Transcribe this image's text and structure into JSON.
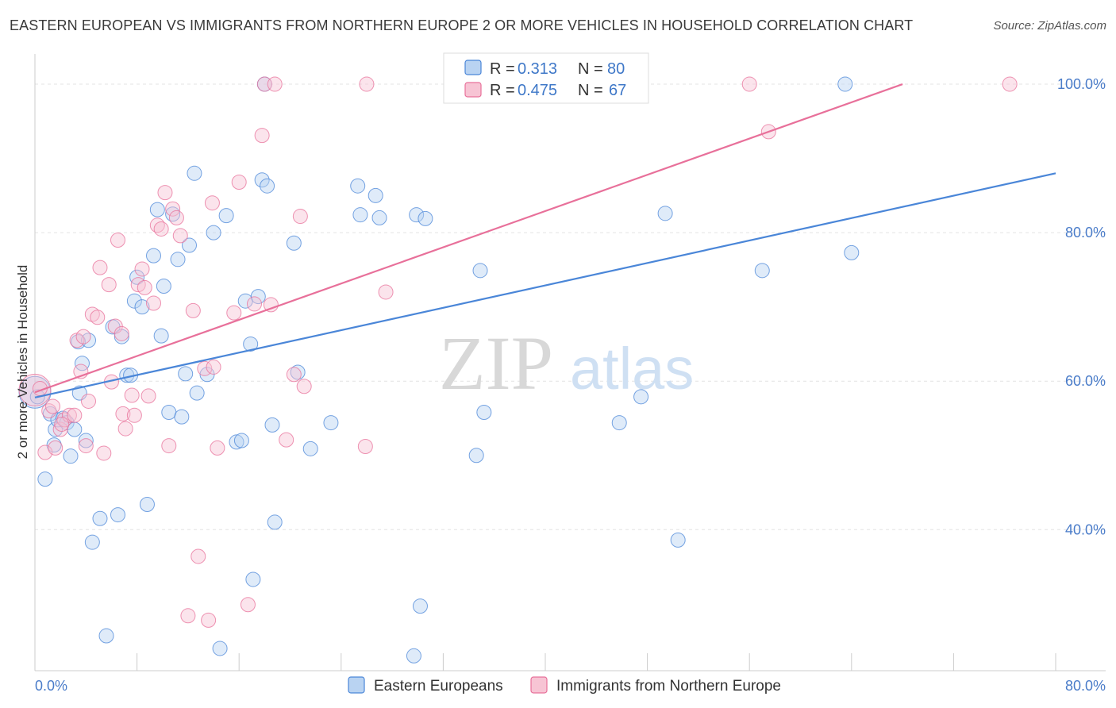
{
  "header": {
    "title": "EASTERN EUROPEAN VS IMMIGRANTS FROM NORTHERN EUROPE 2 OR MORE VEHICLES IN HOUSEHOLD CORRELATION CHART",
    "source": "Source: ZipAtlas.com"
  },
  "watermark": {
    "zip": "ZIP",
    "atlas": "atlas"
  },
  "legend": {
    "r_label": "R =",
    "n_label": "N =",
    "rows": [
      {
        "r": "0.313",
        "n": "80"
      },
      {
        "r": "0.475",
        "n": "67"
      }
    ]
  },
  "chart_data": {
    "type": "scatter",
    "title": "EASTERN EUROPEAN VS IMMIGRANTS FROM NORTHERN EUROPE 2 OR MORE VEHICLES IN HOUSEHOLD CORRELATION CHART",
    "xlabel": "",
    "ylabel": "2 or more Vehicles in Household",
    "xlim": [
      0,
      80
    ],
    "ylim": [
      21,
      103
    ],
    "x_tick_labels": [
      "0.0%",
      "80.0%"
    ],
    "y_ticks": [
      40,
      60,
      80,
      100
    ],
    "y_tick_labels": [
      "40.0%",
      "60.0%",
      "80.0%",
      "100.0%"
    ],
    "grid": true,
    "colors": {
      "blue": "#4a86d8",
      "pink": "#e8709a",
      "blue_fill": "#b9d3f2",
      "pink_fill": "#f7c4d4"
    },
    "series": [
      {
        "name": "Eastern Europeans",
        "color": "#4a86d8",
        "trend": {
          "x": [
            0,
            80
          ],
          "y": [
            57.8,
            88.0
          ]
        },
        "points": [
          [
            0.0,
            58.5
          ],
          [
            0.2,
            57.9
          ],
          [
            0.8,
            46.8
          ],
          [
            1.2,
            55.6
          ],
          [
            1.5,
            51.4
          ],
          [
            1.6,
            53.5
          ],
          [
            1.8,
            54.8
          ],
          [
            2.2,
            55.0
          ],
          [
            2.5,
            54.4
          ],
          [
            2.8,
            49.9
          ],
          [
            3.1,
            53.5
          ],
          [
            3.4,
            65.3
          ],
          [
            3.5,
            58.4
          ],
          [
            3.7,
            62.4
          ],
          [
            4.0,
            52.0
          ],
          [
            4.2,
            65.5
          ],
          [
            4.5,
            38.3
          ],
          [
            5.1,
            41.5
          ],
          [
            5.6,
            25.7
          ],
          [
            6.1,
            67.3
          ],
          [
            6.5,
            42.0
          ],
          [
            6.8,
            66.0
          ],
          [
            7.2,
            60.8
          ],
          [
            7.5,
            60.8
          ],
          [
            7.8,
            70.8
          ],
          [
            8.0,
            74.0
          ],
          [
            8.4,
            70.0
          ],
          [
            8.8,
            43.4
          ],
          [
            9.3,
            76.9
          ],
          [
            9.6,
            83.1
          ],
          [
            9.9,
            66.1
          ],
          [
            10.1,
            72.8
          ],
          [
            10.5,
            55.8
          ],
          [
            10.8,
            82.5
          ],
          [
            11.2,
            76.4
          ],
          [
            11.5,
            55.2
          ],
          [
            11.8,
            61.0
          ],
          [
            12.1,
            78.3
          ],
          [
            12.5,
            88.0
          ],
          [
            12.7,
            58.4
          ],
          [
            13.5,
            60.9
          ],
          [
            14.0,
            80.0
          ],
          [
            14.5,
            24.0
          ],
          [
            15.0,
            82.3
          ],
          [
            15.8,
            51.8
          ],
          [
            16.2,
            52.0
          ],
          [
            16.5,
            70.8
          ],
          [
            16.9,
            65.0
          ],
          [
            17.1,
            33.3
          ],
          [
            17.5,
            71.4
          ],
          [
            17.8,
            87.1
          ],
          [
            18.0,
            100.0
          ],
          [
            18.2,
            86.3
          ],
          [
            18.6,
            54.1
          ],
          [
            18.8,
            41.0
          ],
          [
            20.3,
            78.6
          ],
          [
            20.6,
            61.2
          ],
          [
            21.6,
            50.9
          ],
          [
            23.2,
            54.4
          ],
          [
            25.3,
            86.3
          ],
          [
            25.5,
            82.4
          ],
          [
            26.7,
            85.0
          ],
          [
            27.0,
            82.0
          ],
          [
            29.9,
            82.4
          ],
          [
            30.6,
            81.9
          ],
          [
            30.2,
            29.7
          ],
          [
            29.7,
            23.0
          ],
          [
            34.6,
            50.0
          ],
          [
            34.9,
            74.9
          ],
          [
            35.2,
            55.8
          ],
          [
            34.6,
            100.0
          ],
          [
            37.0,
            100.0
          ],
          [
            45.8,
            54.4
          ],
          [
            47.5,
            57.9
          ],
          [
            49.4,
            82.6
          ],
          [
            50.4,
            38.6
          ],
          [
            57.0,
            74.9
          ],
          [
            63.5,
            100.0
          ],
          [
            64.0,
            77.3
          ],
          [
            38.0,
            100.0
          ]
        ]
      },
      {
        "name": "Immigrants from Northern Europe",
        "color": "#e8709a",
        "trend": {
          "x": [
            0,
            68
          ],
          "y": [
            58.5,
            100.0
          ]
        },
        "points": [
          [
            0.0,
            58.8
          ],
          [
            0.4,
            59.0
          ],
          [
            0.8,
            50.4
          ],
          [
            1.1,
            56.0
          ],
          [
            1.4,
            56.6
          ],
          [
            1.6,
            51.0
          ],
          [
            2.0,
            53.5
          ],
          [
            2.3,
            54.8
          ],
          [
            2.7,
            55.4
          ],
          [
            3.1,
            55.4
          ],
          [
            3.3,
            65.5
          ],
          [
            3.6,
            61.3
          ],
          [
            4.0,
            51.3
          ],
          [
            4.2,
            57.3
          ],
          [
            4.5,
            69.0
          ],
          [
            4.9,
            68.6
          ],
          [
            5.1,
            75.3
          ],
          [
            5.4,
            50.3
          ],
          [
            5.8,
            73.0
          ],
          [
            6.3,
            67.4
          ],
          [
            6.5,
            79.0
          ],
          [
            6.8,
            66.4
          ],
          [
            6.9,
            55.6
          ],
          [
            7.1,
            53.6
          ],
          [
            7.6,
            58.1
          ],
          [
            7.8,
            55.4
          ],
          [
            8.1,
            73.0
          ],
          [
            8.4,
            75.1
          ],
          [
            8.6,
            72.6
          ],
          [
            8.9,
            58.0
          ],
          [
            9.3,
            70.5
          ],
          [
            9.6,
            81.0
          ],
          [
            9.9,
            80.5
          ],
          [
            10.2,
            85.4
          ],
          [
            10.5,
            51.3
          ],
          [
            10.8,
            83.2
          ],
          [
            11.1,
            82.0
          ],
          [
            11.4,
            79.6
          ],
          [
            12.0,
            28.4
          ],
          [
            12.4,
            69.5
          ],
          [
            12.8,
            36.4
          ],
          [
            13.3,
            61.7
          ],
          [
            13.6,
            27.8
          ],
          [
            13.9,
            84.0
          ],
          [
            14.3,
            51.0
          ],
          [
            15.6,
            69.2
          ],
          [
            16.0,
            86.8
          ],
          [
            16.7,
            29.9
          ],
          [
            17.2,
            70.4
          ],
          [
            17.8,
            93.1
          ],
          [
            18.0,
            100.0
          ],
          [
            18.5,
            70.3
          ],
          [
            18.8,
            100.0
          ],
          [
            19.7,
            52.1
          ],
          [
            20.3,
            60.9
          ],
          [
            20.8,
            82.2
          ],
          [
            21.1,
            59.3
          ],
          [
            25.9,
            51.2
          ],
          [
            26.0,
            100.0
          ],
          [
            27.5,
            72.0
          ],
          [
            56.0,
            100.0
          ],
          [
            57.5,
            93.6
          ],
          [
            76.4,
            100.0
          ],
          [
            14.0,
            61.9
          ],
          [
            6.0,
            59.9
          ],
          [
            3.8,
            66.0
          ],
          [
            2.1,
            54.2
          ]
        ]
      }
    ]
  },
  "axis": {
    "y_label": "2 or more Vehicles in Household",
    "y_ticks": [
      "40.0%",
      "60.0%",
      "80.0%",
      "100.0%"
    ],
    "x_min_label": "0.0%",
    "x_max_label": "80.0%"
  },
  "bottom_legend": [
    {
      "label": "Eastern Europeans"
    },
    {
      "label": "Immigrants from Northern Europe"
    }
  ]
}
